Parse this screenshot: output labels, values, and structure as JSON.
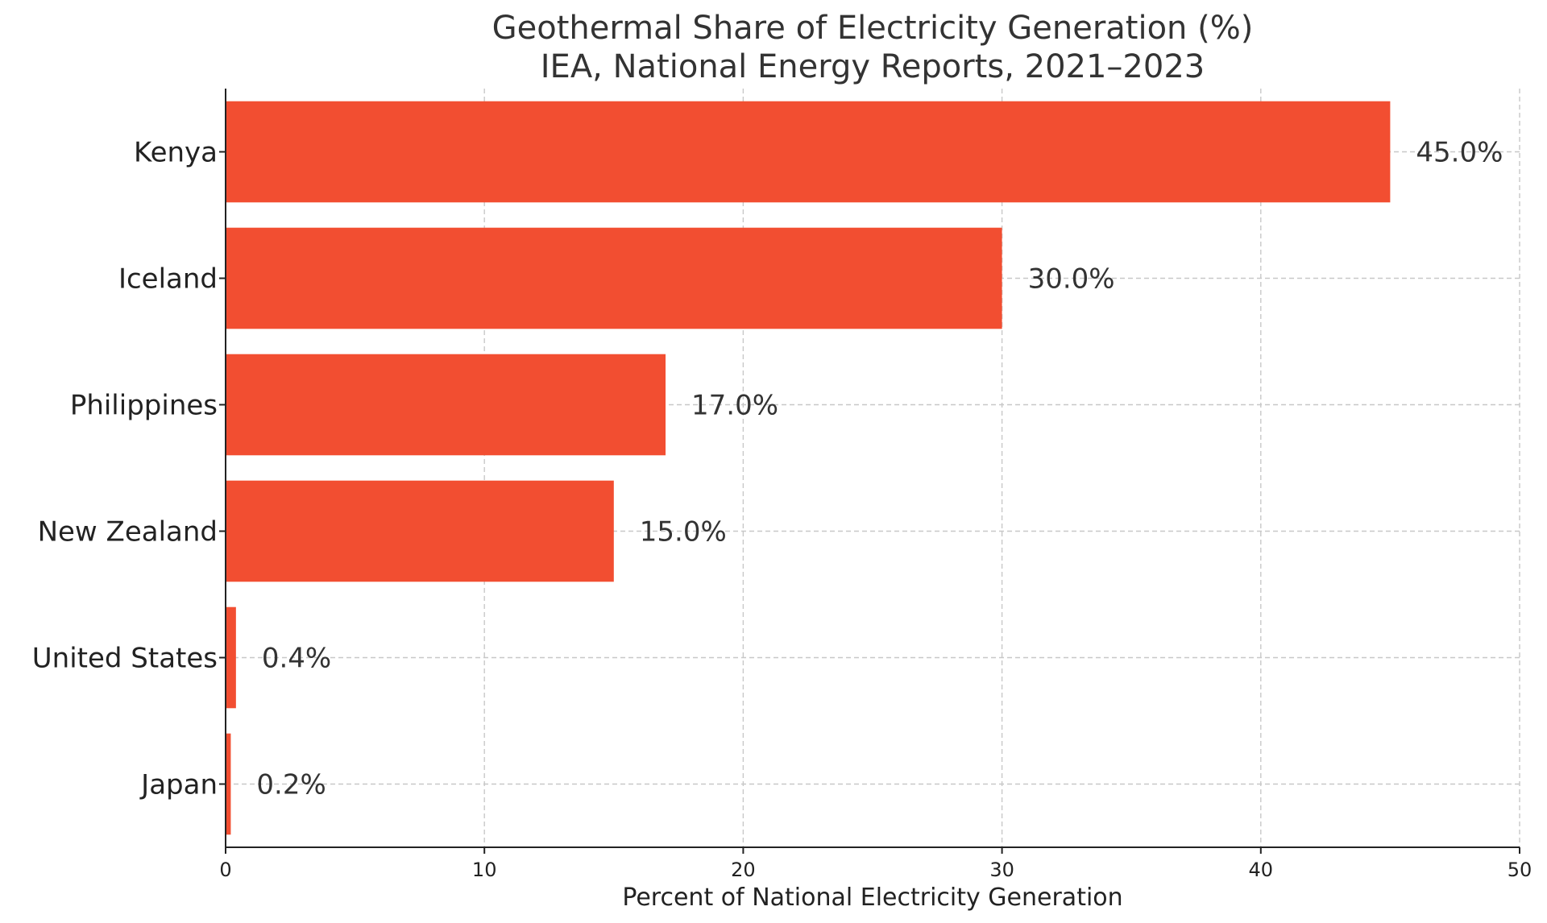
{
  "chart_data": {
    "type": "bar",
    "orientation": "horizontal",
    "title": "Geothermal Share of Electricity Generation (%)",
    "subtitle": "IEA, National Energy Reports, 2021–2023",
    "xlabel": "Percent of National Electricity Generation",
    "ylabel": "",
    "xlim": [
      0,
      50
    ],
    "xticks": [
      0,
      10,
      20,
      30,
      40,
      50
    ],
    "grid": true,
    "categories": [
      "Kenya",
      "Iceland",
      "Philippines",
      "New Zealand",
      "United States",
      "Japan"
    ],
    "values": [
      45.0,
      30.0,
      17.0,
      15.0,
      0.4,
      0.2
    ],
    "value_labels": [
      "45.0%",
      "30.0%",
      "17.0%",
      "15.0%",
      "0.4%",
      "0.2%"
    ],
    "bar_color": "#f24e31"
  }
}
